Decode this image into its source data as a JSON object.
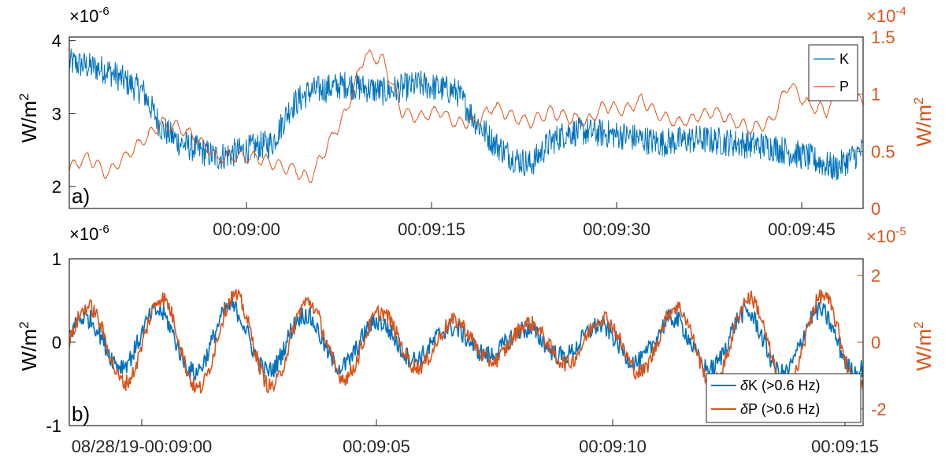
{
  "chart_data": [
    {
      "type": "line",
      "panel_label": "a)",
      "x_ticks": [
        "00:09:00",
        "00:09:15",
        "00:09:30",
        "00:09:45"
      ],
      "xlim_seconds": [
        548,
        591
      ],
      "y_left": {
        "label_base": "W/m",
        "label_sup": "2",
        "exponent_prefix": "×10",
        "exponent_sup": "-6",
        "ylim": [
          1.7,
          4.05
        ],
        "ticks": [
          "2",
          "3",
          "4"
        ],
        "tick_values": [
          2,
          3,
          4
        ],
        "color": "#000000"
      },
      "y_right": {
        "label_base": "W/m",
        "label_sup": "2",
        "exponent_prefix": "×10",
        "exponent_sup": "-4",
        "ylim": [
          0,
          1.5
        ],
        "ticks": [
          "0",
          "0.5",
          "1",
          "1.5"
        ],
        "tick_values": [
          0,
          0.5,
          1,
          1.5
        ],
        "color": "#D95319"
      },
      "legend": {
        "placement": "top-right",
        "entries": [
          "K",
          "P"
        ]
      },
      "series": [
        {
          "name": "K",
          "axis": "left",
          "color": "#0072BD",
          "x": [
            548,
            550,
            552,
            553,
            554,
            556,
            557.5,
            559,
            560,
            561,
            563,
            565,
            567,
            569,
            570,
            571,
            572,
            573,
            574,
            575,
            576,
            578,
            580,
            582,
            584,
            586,
            588,
            589.5,
            591
          ],
          "y": [
            3.7,
            3.6,
            3.3,
            2.8,
            2.6,
            2.4,
            2.5,
            2.6,
            3.1,
            3.3,
            3.4,
            3.3,
            3.4,
            3.3,
            2.9,
            2.6,
            2.4,
            2.3,
            2.6,
            2.75,
            2.75,
            2.7,
            2.6,
            2.65,
            2.6,
            2.55,
            2.4,
            2.25,
            2.5
          ],
          "noise": 0.2
        },
        {
          "name": "P",
          "axis": "right",
          "color": "#D95319",
          "x": [
            548,
            549,
            550,
            551,
            552,
            553,
            554,
            555,
            556,
            557,
            558,
            559,
            560,
            561,
            562,
            563,
            564,
            565,
            566,
            567,
            568,
            569,
            570,
            571,
            572,
            573,
            574,
            575,
            576,
            577,
            578,
            579,
            580,
            581,
            582,
            583,
            584,
            585,
            586,
            587,
            588,
            589,
            590,
            591
          ],
          "y": [
            0.35,
            0.45,
            0.3,
            0.45,
            0.6,
            0.75,
            0.7,
            0.6,
            0.45,
            0.45,
            0.45,
            0.4,
            0.35,
            0.25,
            0.55,
            0.85,
            1.35,
            1.3,
            0.85,
            0.8,
            0.85,
            0.75,
            0.75,
            0.9,
            0.8,
            0.75,
            0.85,
            0.8,
            0.75,
            0.9,
            0.85,
            0.95,
            0.8,
            0.75,
            0.8,
            0.85,
            0.75,
            0.7,
            0.75,
            1.1,
            0.9,
            0.85,
            1.1,
            0.9
          ],
          "noise": 0.03
        }
      ]
    },
    {
      "type": "line",
      "panel_label": "b)",
      "x_ticks": [
        "08/28/19-00:09:00",
        "00:09:05",
        "00:09:10",
        "00:09:15"
      ],
      "xlim_seconds": [
        540,
        555
      ],
      "y_left": {
        "label_base": "W/m",
        "label_sup": "2",
        "exponent_prefix": "×10",
        "exponent_sup": "-6",
        "ylim": [
          -1,
          1
        ],
        "ticks": [
          "-1",
          "0",
          "1"
        ],
        "tick_values": [
          -1,
          0,
          1
        ],
        "color": "#000000"
      },
      "y_right": {
        "label_base": "W/m",
        "label_sup": "2",
        "exponent_prefix": "×10",
        "exponent_sup": "-5",
        "ylim": [
          -2.5,
          2.5
        ],
        "ticks": [
          "-2",
          "0",
          "2"
        ],
        "tick_values": [
          -2,
          0,
          2
        ],
        "color": "#D95319"
      },
      "legend": {
        "placement": "bottom-right",
        "entries": [
          {
            "sym": "δ",
            "text": "K (>0.6 Hz)"
          },
          {
            "sym": "δ",
            "text": "P (>0.6 Hz)"
          }
        ]
      },
      "series": [
        {
          "name": "δK (>0.6 Hz)",
          "axis": "left",
          "color": "#0072BD",
          "x": [
            540,
            541,
            542,
            543,
            544,
            545,
            546,
            547,
            548,
            549,
            550,
            551,
            552,
            553,
            554,
            555
          ],
          "y": [
            0,
            0.05,
            0,
            0.05,
            0,
            0,
            0,
            0,
            0,
            0,
            0,
            0,
            0,
            0,
            0,
            0
          ],
          "amplitude": 0.38,
          "noise": 0.12
        },
        {
          "name": "δP (>0.6 Hz)",
          "axis": "right",
          "color": "#D95319",
          "x": [
            540,
            541,
            542,
            543,
            544,
            545,
            546,
            547,
            548,
            549,
            550,
            551,
            552,
            553,
            554,
            555
          ],
          "y": [
            0,
            0,
            0,
            0,
            0,
            0,
            0,
            0,
            0,
            0,
            0,
            0,
            0,
            0,
            0,
            0
          ],
          "amplitude": 1.4,
          "noise": 0.25
        }
      ]
    }
  ]
}
